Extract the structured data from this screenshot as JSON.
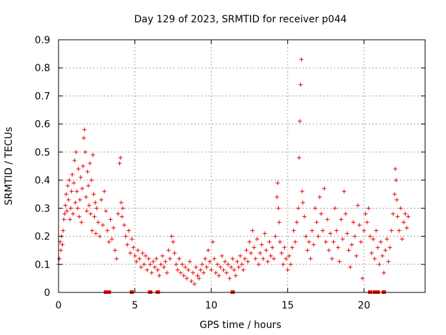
{
  "chart_data": {
    "type": "scatter",
    "title": "Day 129 of 2023, SRMTID for receiver p044",
    "xlabel": "GPS time / hours",
    "ylabel": "SRMTID / TECUs",
    "xlim": [
      0,
      24
    ],
    "ylim": [
      0,
      0.9
    ],
    "x_ticks": [
      0,
      5,
      10,
      15,
      20
    ],
    "x_tick_labels": [
      "0",
      "5",
      "10",
      "15",
      "20"
    ],
    "y_ticks": [
      0,
      0.1,
      0.2,
      0.3,
      0.4,
      0.5,
      0.6,
      0.7,
      0.8,
      0.9
    ],
    "y_tick_labels": [
      "0",
      "0.1",
      "0.2",
      "0.3",
      "0.4",
      "0.5",
      "0.6",
      "0.7",
      "0.8",
      "0.9"
    ],
    "grid": true,
    "marker": "+",
    "series_color": "#ee0000",
    "series": [
      {
        "name": "SRMTID",
        "points": [
          [
            0.0,
            0.1
          ],
          [
            0.05,
            0.12
          ],
          [
            0.1,
            0.18
          ],
          [
            0.15,
            0.15
          ],
          [
            0.2,
            0.2
          ],
          [
            0.25,
            0.17
          ],
          [
            0.3,
            0.22
          ],
          [
            0.35,
            0.26
          ],
          [
            0.4,
            0.28
          ],
          [
            0.45,
            0.31
          ],
          [
            0.5,
            0.35
          ],
          [
            0.55,
            0.29
          ],
          [
            0.6,
            0.38
          ],
          [
            0.65,
            0.33
          ],
          [
            0.7,
            0.4
          ],
          [
            0.75,
            0.26
          ],
          [
            0.8,
            0.3
          ],
          [
            0.85,
            0.36
          ],
          [
            0.9,
            0.42
          ],
          [
            0.95,
            0.28
          ],
          [
            1.0,
            0.39
          ],
          [
            1.05,
            0.47
          ],
          [
            1.1,
            0.32
          ],
          [
            1.15,
            0.5
          ],
          [
            1.2,
            0.36
          ],
          [
            1.25,
            0.3
          ],
          [
            1.3,
            0.44
          ],
          [
            1.35,
            0.27
          ],
          [
            1.4,
            0.33
          ],
          [
            1.45,
            0.41
          ],
          [
            1.5,
            0.25
          ],
          [
            1.55,
            0.37
          ],
          [
            1.6,
            0.45
          ],
          [
            1.65,
            0.55
          ],
          [
            1.7,
            0.58
          ],
          [
            1.75,
            0.5
          ],
          [
            1.8,
            0.34
          ],
          [
            1.85,
            0.29
          ],
          [
            1.9,
            0.43
          ],
          [
            1.95,
            0.38
          ],
          [
            2.0,
            0.31
          ],
          [
            2.05,
            0.46
          ],
          [
            2.1,
            0.28
          ],
          [
            2.15,
            0.4
          ],
          [
            2.2,
            0.22
          ],
          [
            2.25,
            0.49
          ],
          [
            2.3,
            0.35
          ],
          [
            2.35,
            0.27
          ],
          [
            2.4,
            0.32
          ],
          [
            2.45,
            0.21
          ],
          [
            2.5,
            0.3
          ],
          [
            2.6,
            0.25
          ],
          [
            2.7,
            0.2
          ],
          [
            2.8,
            0.33
          ],
          [
            2.9,
            0.24
          ],
          [
            3.0,
            0.36
          ],
          [
            3.1,
            0.29
          ],
          [
            3.2,
            0.22
          ],
          [
            3.3,
            0.18
          ],
          [
            3.4,
            0.26
          ],
          [
            3.5,
            0.19
          ],
          [
            3.6,
            0.23
          ],
          [
            3.7,
            0.15
          ],
          [
            3.8,
            0.12
          ],
          [
            3.9,
            0.28
          ],
          [
            4.0,
            0.46
          ],
          [
            4.05,
            0.48
          ],
          [
            4.1,
            0.32
          ],
          [
            4.15,
            0.27
          ],
          [
            4.2,
            0.3
          ],
          [
            4.3,
            0.24
          ],
          [
            4.4,
            0.2
          ],
          [
            4.5,
            0.17
          ],
          [
            4.6,
            0.22
          ],
          [
            4.7,
            0.14
          ],
          [
            4.8,
            0.19
          ],
          [
            4.9,
            0.16
          ],
          [
            5.0,
            0.13
          ],
          [
            5.1,
            0.11
          ],
          [
            5.2,
            0.15
          ],
          [
            5.3,
            0.12
          ],
          [
            5.4,
            0.09
          ],
          [
            5.5,
            0.14
          ],
          [
            5.6,
            0.1
          ],
          [
            5.7,
            0.13
          ],
          [
            5.8,
            0.08
          ],
          [
            5.9,
            0.12
          ],
          [
            6.0,
            0.1
          ],
          [
            6.1,
            0.07
          ],
          [
            6.2,
            0.11
          ],
          [
            6.3,
            0.09
          ],
          [
            6.4,
            0.12
          ],
          [
            6.5,
            0.08
          ],
          [
            6.6,
            0.06
          ],
          [
            6.7,
            0.1
          ],
          [
            6.8,
            0.13
          ],
          [
            6.9,
            0.09
          ],
          [
            7.0,
            0.11
          ],
          [
            7.1,
            0.07
          ],
          [
            7.2,
            0.15
          ],
          [
            7.3,
            0.12
          ],
          [
            7.4,
            0.2
          ],
          [
            7.5,
            0.18
          ],
          [
            7.6,
            0.14
          ],
          [
            7.7,
            0.1
          ],
          [
            7.8,
            0.08
          ],
          [
            7.9,
            0.12
          ],
          [
            8.0,
            0.07
          ],
          [
            8.1,
            0.1
          ],
          [
            8.2,
            0.06
          ],
          [
            8.3,
            0.09
          ],
          [
            8.4,
            0.05
          ],
          [
            8.5,
            0.08
          ],
          [
            8.6,
            0.11
          ],
          [
            8.7,
            0.04
          ],
          [
            8.8,
            0.07
          ],
          [
            8.9,
            0.03
          ],
          [
            9.0,
            0.09
          ],
          [
            9.1,
            0.06
          ],
          [
            9.2,
            0.05
          ],
          [
            9.3,
            0.08
          ],
          [
            9.4,
            0.1
          ],
          [
            9.5,
            0.07
          ],
          [
            9.6,
            0.12
          ],
          [
            9.7,
            0.09
          ],
          [
            9.8,
            0.15
          ],
          [
            9.9,
            0.11
          ],
          [
            10.0,
            0.08
          ],
          [
            10.1,
            0.18
          ],
          [
            10.2,
            0.12
          ],
          [
            10.3,
            0.07
          ],
          [
            10.4,
            0.1
          ],
          [
            10.5,
            0.06
          ],
          [
            10.6,
            0.09
          ],
          [
            10.7,
            0.13
          ],
          [
            10.8,
            0.08
          ],
          [
            10.9,
            0.11
          ],
          [
            11.0,
            0.07
          ],
          [
            11.1,
            0.1
          ],
          [
            11.2,
            0.05
          ],
          [
            11.3,
            0.09
          ],
          [
            11.4,
            0.12
          ],
          [
            11.5,
            0.08
          ],
          [
            11.6,
            0.06
          ],
          [
            11.7,
            0.11
          ],
          [
            11.8,
            0.09
          ],
          [
            11.9,
            0.13
          ],
          [
            12.0,
            0.1
          ],
          [
            12.1,
            0.08
          ],
          [
            12.2,
            0.12
          ],
          [
            12.3,
            0.15
          ],
          [
            12.4,
            0.11
          ],
          [
            12.5,
            0.18
          ],
          [
            12.6,
            0.14
          ],
          [
            12.7,
            0.22
          ],
          [
            12.8,
            0.16
          ],
          [
            12.9,
            0.12
          ],
          [
            13.0,
            0.19
          ],
          [
            13.1,
            0.1
          ],
          [
            13.2,
            0.14
          ],
          [
            13.3,
            0.17
          ],
          [
            13.4,
            0.12
          ],
          [
            13.5,
            0.21
          ],
          [
            13.6,
            0.15
          ],
          [
            13.7,
            0.11
          ],
          [
            13.8,
            0.18
          ],
          [
            13.9,
            0.13
          ],
          [
            14.0,
            0.16
          ],
          [
            14.1,
            0.12
          ],
          [
            14.2,
            0.2
          ],
          [
            14.3,
            0.34
          ],
          [
            14.35,
            0.39
          ],
          [
            14.4,
            0.3
          ],
          [
            14.45,
            0.25
          ],
          [
            14.5,
            0.18
          ],
          [
            14.6,
            0.14
          ],
          [
            14.7,
            0.1
          ],
          [
            14.8,
            0.16
          ],
          [
            14.9,
            0.12
          ],
          [
            15.0,
            0.08
          ],
          [
            15.1,
            0.13
          ],
          [
            15.2,
            0.1
          ],
          [
            15.3,
            0.16
          ],
          [
            15.4,
            0.22
          ],
          [
            15.5,
            0.18
          ],
          [
            15.6,
            0.25
          ],
          [
            15.7,
            0.3
          ],
          [
            15.75,
            0.48
          ],
          [
            15.8,
            0.61
          ],
          [
            15.85,
            0.74
          ],
          [
            15.9,
            0.83
          ],
          [
            15.95,
            0.36
          ],
          [
            16.0,
            0.32
          ],
          [
            16.1,
            0.27
          ],
          [
            16.2,
            0.2
          ],
          [
            16.3,
            0.15
          ],
          [
            16.4,
            0.18
          ],
          [
            16.5,
            0.12
          ],
          [
            16.6,
            0.22
          ],
          [
            16.7,
            0.17
          ],
          [
            16.8,
            0.3
          ],
          [
            16.9,
            0.25
          ],
          [
            17.0,
            0.2
          ],
          [
            17.1,
            0.34
          ],
          [
            17.2,
            0.28
          ],
          [
            17.3,
            0.22
          ],
          [
            17.4,
            0.37
          ],
          [
            17.5,
            0.18
          ],
          [
            17.6,
            0.26
          ],
          [
            17.7,
            0.15
          ],
          [
            17.8,
            0.21
          ],
          [
            17.9,
            0.12
          ],
          [
            18.0,
            0.18
          ],
          [
            18.1,
            0.3
          ],
          [
            18.2,
            0.22
          ],
          [
            18.3,
            0.16
          ],
          [
            18.4,
            0.11
          ],
          [
            18.5,
            0.26
          ],
          [
            18.6,
            0.19
          ],
          [
            18.7,
            0.36
          ],
          [
            18.8,
            0.28
          ],
          [
            18.9,
            0.21
          ],
          [
            19.0,
            0.15
          ],
          [
            19.1,
            0.09
          ],
          [
            19.2,
            0.17
          ],
          [
            19.3,
            0.25
          ],
          [
            19.4,
            0.2
          ],
          [
            19.5,
            0.13
          ],
          [
            19.6,
            0.31
          ],
          [
            19.7,
            0.24
          ],
          [
            19.8,
            0.18
          ],
          [
            19.9,
            0.05
          ],
          [
            20.0,
            0.22
          ],
          [
            20.1,
            0.28
          ],
          [
            20.2,
            0.25
          ],
          [
            20.3,
            0.3
          ],
          [
            20.4,
            0.2
          ],
          [
            20.5,
            0.14
          ],
          [
            20.6,
            0.19
          ],
          [
            20.7,
            0.12
          ],
          [
            20.8,
            0.22
          ],
          [
            20.9,
            0.16
          ],
          [
            21.0,
            0.1
          ],
          [
            21.1,
            0.18
          ],
          [
            21.2,
            0.13
          ],
          [
            21.3,
            0.07
          ],
          [
            21.4,
            0.15
          ],
          [
            21.5,
            0.19
          ],
          [
            21.6,
            0.11
          ],
          [
            21.7,
            0.16
          ],
          [
            21.8,
            0.22
          ],
          [
            21.9,
            0.28
          ],
          [
            22.0,
            0.35
          ],
          [
            22.05,
            0.44
          ],
          [
            22.1,
            0.4
          ],
          [
            22.15,
            0.33
          ],
          [
            22.2,
            0.27
          ],
          [
            22.3,
            0.22
          ],
          [
            22.4,
            0.3
          ],
          [
            22.5,
            0.19
          ],
          [
            22.6,
            0.25
          ],
          [
            22.7,
            0.28
          ],
          [
            22.8,
            0.23
          ],
          [
            22.9,
            0.27
          ]
        ]
      }
    ],
    "data_gaps_hours": [
      3.1,
      3.3,
      4.8,
      6.0,
      6.5,
      11.4,
      20.4,
      20.7,
      20.9,
      21.3
    ]
  }
}
